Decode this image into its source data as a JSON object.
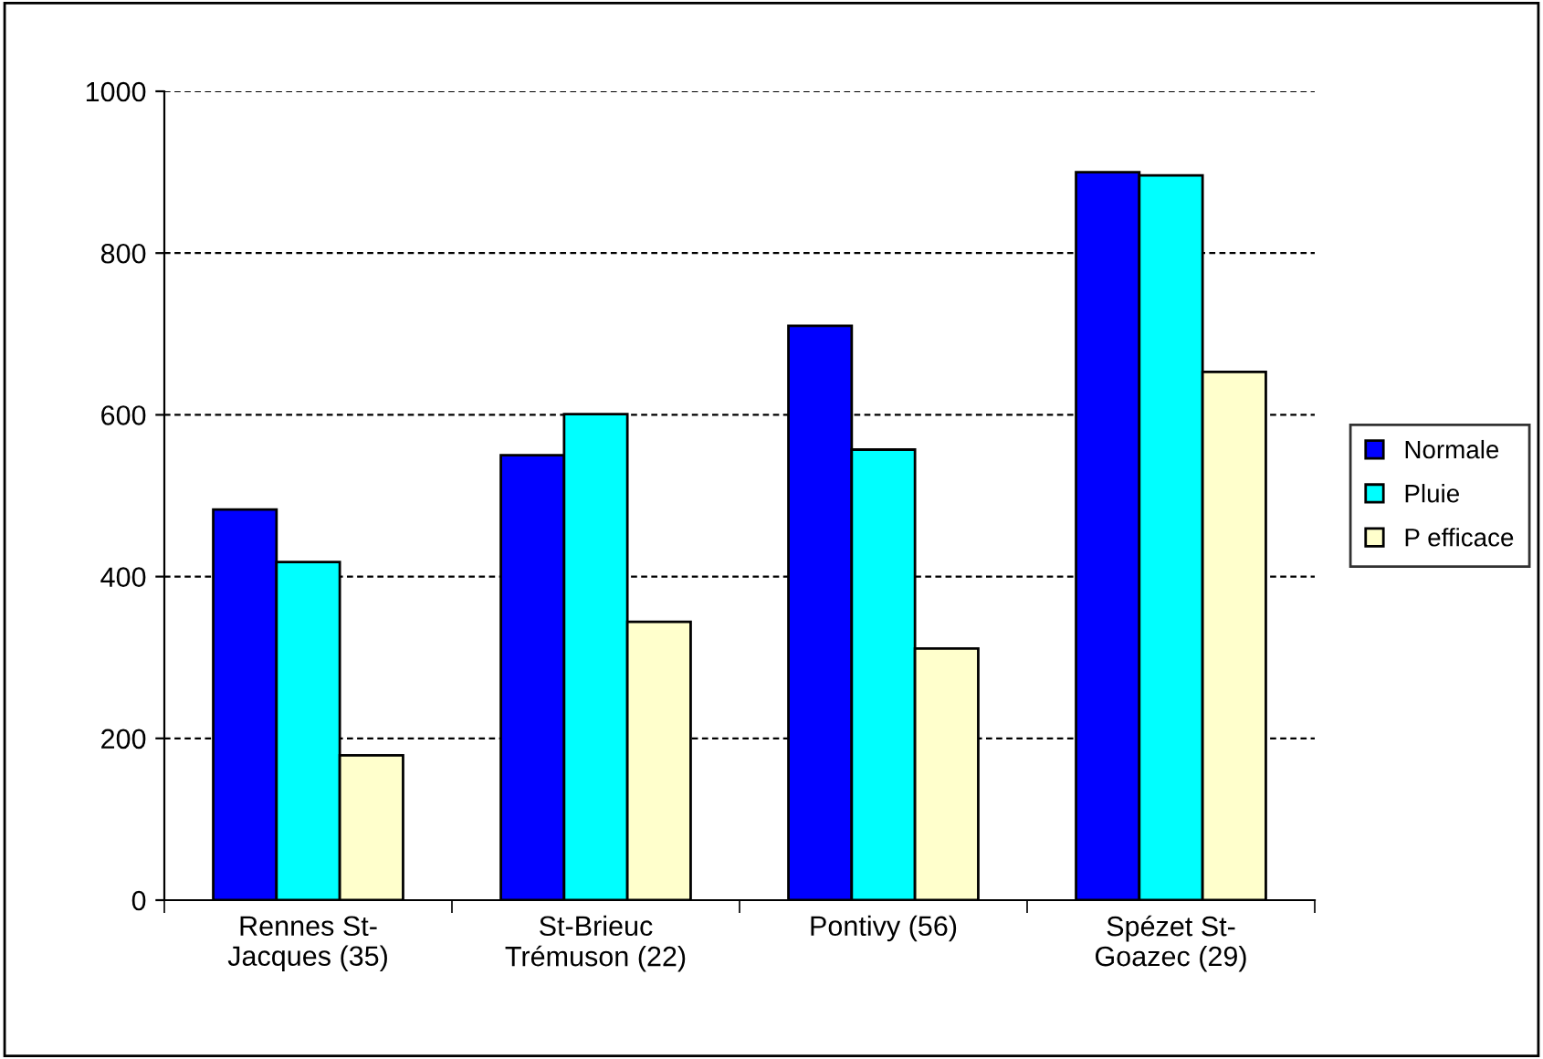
{
  "chart_data": {
    "type": "bar",
    "categories": [
      "Rennes St-\nJacques (35)",
      "St-Brieuc\nTrémuson (22)",
      "Pontivy (56)",
      "Spézet St-\nGoazec (29)"
    ],
    "series": [
      {
        "name": "Normale",
        "color": "#0000ff",
        "values": [
          483,
          550,
          710,
          900
        ]
      },
      {
        "name": "Pluie",
        "color": "#00ffff",
        "values": [
          418,
          601,
          557,
          896
        ]
      },
      {
        "name": "P efficace",
        "color": "#ffffcc",
        "values": [
          179,
          344,
          311,
          653
        ]
      }
    ],
    "ylim": [
      0,
      1000
    ],
    "yticks": [
      0,
      200,
      400,
      600,
      800,
      1000
    ],
    "grid": "y",
    "legend": "right"
  }
}
